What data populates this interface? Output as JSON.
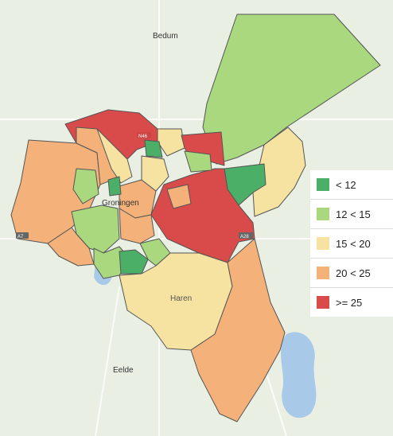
{
  "map": {
    "places": [
      {
        "name": "Bedum"
      },
      {
        "name": "Groningen"
      },
      {
        "name": "Haren"
      },
      {
        "name": "Eelde"
      }
    ],
    "road_badges": [
      "N46",
      "A7",
      "A28"
    ]
  },
  "legend": {
    "items": [
      {
        "label": "< 12",
        "color": "#4caf68"
      },
      {
        "label": "12 < 15",
        "color": "#a9d87e"
      },
      {
        "label": "15 < 20",
        "color": "#f6e3a1"
      },
      {
        "label": "20 < 25",
        "color": "#f4b27a"
      },
      {
        "label": ">= 25",
        "color": "#d94b4b"
      }
    ]
  },
  "colors": {
    "background": "#e8eee0",
    "water": "#a9c9e8",
    "road": "#ffffff"
  }
}
